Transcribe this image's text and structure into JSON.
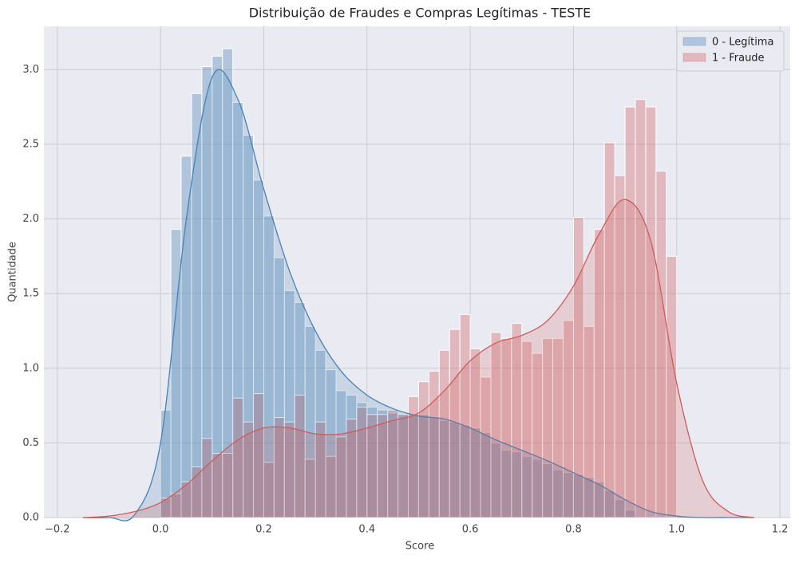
{
  "chart_data": {
    "type": "histogram",
    "title": "Distribuição de Fraudes e Compras Legítimas - TESTE",
    "x_label": "Score",
    "y_label": "Quantidade",
    "bins": [
      0,
      0.02,
      0.04,
      0.06,
      0.08,
      0.1,
      0.12,
      0.14,
      0.16,
      0.18,
      0.2,
      0.22,
      0.24,
      0.26,
      0.28,
      0.3,
      0.32,
      0.34,
      0.36,
      0.38,
      0.4,
      0.42,
      0.44,
      0.46,
      0.48,
      0.5,
      0.52,
      0.54,
      0.56,
      0.58,
      0.6,
      0.62,
      0.64,
      0.66,
      0.68,
      0.7,
      0.72,
      0.74,
      0.76,
      0.78,
      0.8,
      0.82,
      0.84,
      0.86,
      0.88,
      0.9,
      0.92,
      0.94,
      0.96,
      0.98,
      1.0
    ],
    "kde_x": [
      -0.15,
      -0.1,
      -0.05,
      0,
      0.05,
      0.1,
      0.15,
      0.2,
      0.25,
      0.3,
      0.35,
      0.4,
      0.45,
      0.5,
      0.55,
      0.6,
      0.65,
      0.7,
      0.75,
      0.8,
      0.85,
      0.9,
      0.95,
      1.0,
      1.05,
      1.1,
      1.15
    ],
    "series": [
      {
        "name": "0 - Legítima",
        "color": "#4682b4",
        "values": [
          0.72,
          1.93,
          2.42,
          2.84,
          3.02,
          3.09,
          3.14,
          2.78,
          2.56,
          2.26,
          2.02,
          1.74,
          1.52,
          1.44,
          1.28,
          1.12,
          0.99,
          0.85,
          0.82,
          0.77,
          0.74,
          0.72,
          0.7,
          0.69,
          0.69,
          0.69,
          0.67,
          0.65,
          0.64,
          0.62,
          0.6,
          0.57,
          0.5,
          0.45,
          0.44,
          0.41,
          0.39,
          0.36,
          0.32,
          0.3,
          0.29,
          0.27,
          0.24,
          0.18,
          0.12,
          0.05,
          0,
          0,
          0,
          0
        ],
        "kde": [
          0,
          0,
          0.02,
          0.5,
          2.0,
          2.95,
          2.8,
          2.2,
          1.65,
          1.25,
          0.98,
          0.82,
          0.73,
          0.68,
          0.66,
          0.6,
          0.52,
          0.45,
          0.38,
          0.3,
          0.22,
          0.12,
          0.04,
          0.01,
          0,
          0,
          0
        ]
      },
      {
        "name": "1 - Fraude",
        "color": "#cd5c5c",
        "values": [
          0.13,
          0.16,
          0.24,
          0.34,
          0.53,
          0.43,
          0.43,
          0.8,
          0.64,
          0.83,
          0.37,
          0.67,
          0.64,
          0.82,
          0.39,
          0.64,
          0.41,
          0.54,
          0.66,
          0.74,
          0.69,
          0.69,
          0.72,
          0.69,
          0.81,
          0.91,
          0.98,
          1.12,
          1.26,
          1.36,
          1.13,
          0.94,
          1.24,
          1.2,
          1.3,
          1.18,
          1.1,
          1.2,
          1.2,
          1.32,
          2.01,
          1.28,
          1.93,
          2.51,
          2.29,
          2.75,
          2.8,
          2.75,
          2.32,
          1.75
        ],
        "kde": [
          0,
          0.01,
          0.04,
          0.1,
          0.22,
          0.38,
          0.52,
          0.6,
          0.6,
          0.56,
          0.56,
          0.6,
          0.65,
          0.7,
          0.85,
          1.05,
          1.17,
          1.22,
          1.32,
          1.55,
          1.9,
          2.13,
          1.85,
          0.9,
          0.25,
          0.04,
          0
        ]
      }
    ],
    "xlim": [
      -0.226,
      1.22
    ],
    "ylim": [
      0,
      3.29
    ],
    "xticks": [
      {
        "value": -0.2,
        "label": "−0.2"
      },
      {
        "value": 0,
        "label": "0.0"
      },
      0.2,
      0.4,
      0.6,
      0.8,
      {
        "value": 1,
        "label": "1.0"
      },
      1.2
    ],
    "yticks": [
      {
        "value": 0,
        "label": "0.0"
      },
      0.5,
      {
        "value": 1,
        "label": "1.0"
      },
      1.5,
      {
        "value": 2,
        "label": "2.0"
      },
      2.5,
      {
        "value": 3,
        "label": "3.0"
      }
    ],
    "grid": true,
    "legend": "upper right"
  }
}
